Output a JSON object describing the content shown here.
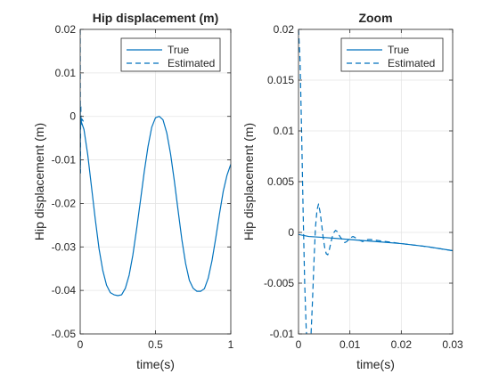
{
  "colors": {
    "series": "#0072BD",
    "grid": "#e4e4e4",
    "axis": "#262626",
    "background": "#ffffff"
  },
  "chart_data": [
    {
      "type": "line",
      "title": "Hip displacement (m)",
      "xlabel": "time(s)",
      "ylabel": "Hip displacement (m)",
      "xlim": [
        0,
        1
      ],
      "ylim": [
        -0.05,
        0.02
      ],
      "xticks": [
        0,
        0.5,
        1
      ],
      "xtick_labels": [
        "0",
        "0.5",
        "1"
      ],
      "yticks": [
        0.02,
        0.01,
        0,
        -0.01,
        -0.02,
        -0.03,
        -0.04,
        -0.05
      ],
      "ytick_labels": [
        "0.02",
        "0.01",
        "0",
        "-0.01",
        "-0.02",
        "-0.03",
        "-0.04",
        "-0.05"
      ],
      "grid": true,
      "legend_position": "top-right",
      "series": [
        {
          "name": "True",
          "style": "solid",
          "x": [
            0,
            0.025,
            0.05,
            0.075,
            0.1,
            0.125,
            0.15,
            0.175,
            0.2,
            0.225,
            0.25,
            0.275,
            0.3,
            0.325,
            0.35,
            0.375,
            0.4,
            0.425,
            0.45,
            0.475,
            0.5,
            0.525,
            0.55,
            0.575,
            0.6,
            0.625,
            0.65,
            0.675,
            0.7,
            0.725,
            0.75,
            0.775,
            0.8,
            0.825,
            0.85,
            0.875,
            0.9,
            0.925,
            0.95,
            0.975,
            1.0
          ],
          "y": [
            -0.0005,
            -0.003,
            -0.0088,
            -0.0162,
            -0.0236,
            -0.0304,
            -0.0354,
            -0.0388,
            -0.0405,
            -0.041,
            -0.0412,
            -0.041,
            -0.0395,
            -0.0365,
            -0.0318,
            -0.0258,
            -0.0194,
            -0.0128,
            -0.007,
            -0.0025,
            -0.0003,
            0.0,
            -0.0008,
            -0.0038,
            -0.0086,
            -0.0148,
            -0.0216,
            -0.0283,
            -0.0338,
            -0.0377,
            -0.0395,
            -0.0402,
            -0.0402,
            -0.0396,
            -0.0372,
            -0.0332,
            -0.028,
            -0.0224,
            -0.0172,
            -0.0135,
            -0.011
          ]
        },
        {
          "name": "Estimated",
          "style": "dashed",
          "x": [
            0,
            0.0004,
            0.0011,
            0.0018,
            0.0026,
            0.0034,
            0.0043,
            0.0052,
            0.006,
            0.0068,
            0.0077,
            0.0087,
            0.0097,
            0.0107,
            0.0116,
            0.0126,
            0.0135,
            0.014,
            0.03
          ],
          "y": [
            0.02,
            0.011,
            -0.012,
            -0.013,
            -0.004,
            0.0013,
            0.0027,
            0.0002,
            -0.0019,
            -0.0015,
            -0.0002,
            -0.0003,
            -0.0008,
            -0.0009,
            -0.0008,
            -0.0007,
            -0.0007,
            -0.0007,
            -0.0018
          ]
        }
      ]
    },
    {
      "type": "line",
      "title": "Zoom",
      "xlabel": "time(s)",
      "ylabel": "Hip displacement (m)",
      "xlim": [
        0,
        0.03
      ],
      "ylim": [
        -0.01,
        0.02
      ],
      "xticks": [
        0,
        0.01,
        0.02,
        0.03
      ],
      "xtick_labels": [
        "0",
        "0.01",
        "0.02",
        "0.03"
      ],
      "yticks": [
        0.02,
        0.015,
        0.01,
        0.005,
        0,
        -0.005,
        -0.01
      ],
      "ytick_labels": [
        "0.02",
        "0.015",
        "0.01",
        "0.005",
        "0",
        "-0.005",
        "-0.01"
      ],
      "grid": true,
      "legend_position": "top-right",
      "series": [
        {
          "name": "True",
          "style": "solid",
          "x": [
            0,
            0.002,
            0.005,
            0.01,
            0.015,
            0.02,
            0.025,
            0.03
          ],
          "y": [
            -0.0002,
            -0.0004,
            -0.0005,
            -0.0007,
            -0.0009,
            -0.0011,
            -0.0014,
            -0.0018
          ]
        },
        {
          "name": "Estimated",
          "style": "dashed",
          "x": [
            0,
            0.0003,
            0.0006,
            0.0009,
            0.0012,
            0.0015,
            0.0018,
            0.0021,
            0.0024,
            0.0027,
            0.003,
            0.0033,
            0.0036,
            0.0039,
            0.0042,
            0.0045,
            0.0048,
            0.0051,
            0.0054,
            0.0057,
            0.006,
            0.0063,
            0.0066,
            0.0069,
            0.0072,
            0.0075,
            0.0078,
            0.0082,
            0.0086,
            0.009,
            0.0094,
            0.0098,
            0.0102,
            0.0106,
            0.011,
            0.0115,
            0.012,
            0.0125,
            0.013,
            0.0135,
            0.014,
            0.02,
            0.025,
            0.03
          ],
          "y": [
            0.02,
            0.017,
            0.01,
            0.002,
            -0.005,
            -0.0095,
            -0.0118,
            -0.0125,
            -0.0105,
            -0.007,
            -0.003,
            0.0005,
            0.0022,
            0.0028,
            0.002,
            0.0008,
            -0.0005,
            -0.0015,
            -0.0021,
            -0.0022,
            -0.0017,
            -0.001,
            -0.0004,
            0.0,
            0.0002,
            0.0001,
            -0.0002,
            -0.0005,
            -0.0008,
            -0.001,
            -0.0009,
            -0.0007,
            -0.0005,
            -0.0004,
            -0.0005,
            -0.0007,
            -0.0008,
            -0.0009,
            -0.0008,
            -0.0007,
            -0.0007,
            -0.0011,
            -0.0014,
            -0.0018
          ]
        }
      ]
    }
  ]
}
